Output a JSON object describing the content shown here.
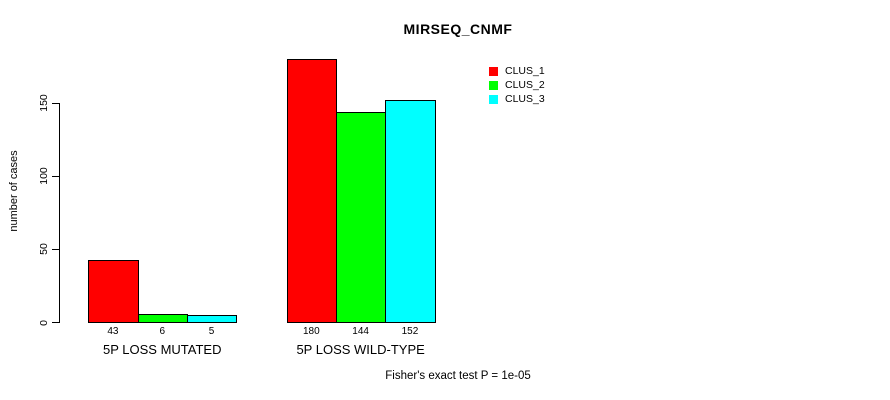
{
  "chart_data": {
    "type": "bar",
    "title": "MIRSEQ_CNMF",
    "ylabel": "number of cases",
    "xlabel": "",
    "footnote": "Fisher's exact test P = 1e-05",
    "categories": [
      "5P LOSS MUTATED",
      "5P LOSS WILD-TYPE"
    ],
    "series": [
      {
        "name": "CLUS_1",
        "color": "#FF0000",
        "values": [
          43,
          180
        ]
      },
      {
        "name": "CLUS_2",
        "color": "#00FF00",
        "values": [
          6,
          144
        ]
      },
      {
        "name": "CLUS_3",
        "color": "#00FFFF",
        "values": [
          5,
          152
        ]
      }
    ],
    "yticks": [
      0,
      50,
      100,
      150
    ],
    "ylim": [
      0,
      150
    ],
    "grid": false,
    "legend_position": "top-right",
    "bar_value_labels_shown": true
  }
}
